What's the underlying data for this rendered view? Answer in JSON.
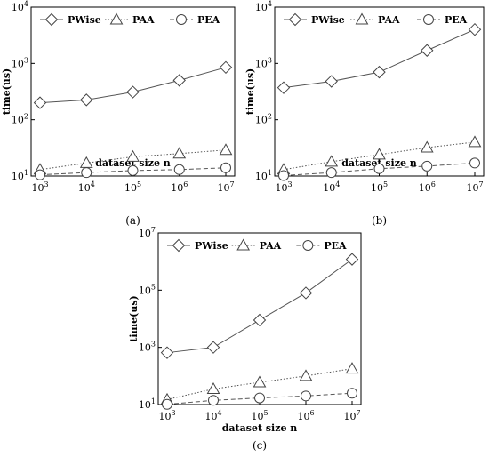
{
  "chart_data": [
    {
      "type": "line",
      "caption": "(a)",
      "log_y": true,
      "ylim": [
        10,
        10000
      ],
      "x_ticks": [
        "10^3",
        "10^4",
        "10^5",
        "10^6",
        "10^7"
      ],
      "y_ticks": [
        "10^1",
        "10^2",
        "10^3",
        "10^4"
      ],
      "xlabel": "dataset size n",
      "ylabel": "time(us)",
      "legend": "top-inside",
      "series": [
        {
          "name": "PWise",
          "marker": "diamond",
          "line": "solid",
          "values": [
            200,
            225,
            310,
            500,
            850
          ]
        },
        {
          "name": "PAA",
          "marker": "triangle",
          "line": "dotted",
          "values": [
            13,
            17,
            22,
            25,
            29
          ]
        },
        {
          "name": "PEA",
          "marker": "circle",
          "line": "dashed",
          "values": [
            10.5,
            11.5,
            12.5,
            13,
            14
          ]
        }
      ]
    },
    {
      "type": "line",
      "caption": "(b)",
      "log_y": true,
      "ylim": [
        10,
        10000
      ],
      "x_ticks": [
        "10^3",
        "10^4",
        "10^5",
        "10^6",
        "10^7"
      ],
      "y_ticks": [
        "10^1",
        "10^2",
        "10^3",
        "10^4"
      ],
      "xlabel": "dataset size n",
      "ylabel": "time(us)",
      "legend": "top-inside",
      "series": [
        {
          "name": "PWise",
          "marker": "diamond",
          "line": "solid",
          "values": [
            370,
            480,
            700,
            1700,
            4000
          ]
        },
        {
          "name": "PAA",
          "marker": "triangle",
          "line": "dotted",
          "values": [
            13,
            18,
            24,
            32,
            40
          ]
        },
        {
          "name": "PEA",
          "marker": "circle",
          "line": "dashed",
          "values": [
            10.2,
            11.5,
            13.5,
            15,
            17
          ]
        }
      ]
    },
    {
      "type": "line",
      "caption": "(c)",
      "log_y": true,
      "ylim": [
        10,
        10000000
      ],
      "x_ticks": [
        "10^3",
        "10^4",
        "10^5",
        "10^6",
        "10^7"
      ],
      "y_ticks": [
        "10^1",
        "10^3",
        "10^5",
        "10^7"
      ],
      "xlabel": "dataset size n",
      "ylabel": "time(us)",
      "legend": "top-inside",
      "series": [
        {
          "name": "PWise",
          "marker": "diamond",
          "line": "solid",
          "values": [
            650,
            1000,
            9000,
            80000,
            1200000
          ]
        },
        {
          "name": "PAA",
          "marker": "triangle",
          "line": "dotted",
          "values": [
            15,
            35,
            60,
            100,
            180
          ]
        },
        {
          "name": "PEA",
          "marker": "circle",
          "line": "dashed",
          "values": [
            10.2,
            14,
            17,
            20,
            25
          ]
        }
      ]
    }
  ]
}
